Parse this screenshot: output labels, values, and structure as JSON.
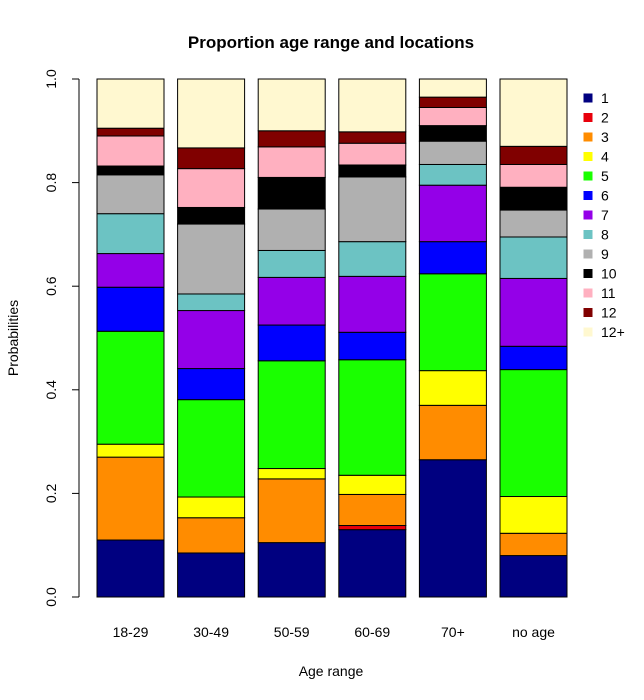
{
  "chart_data": {
    "type": "bar",
    "stacked": true,
    "title": "Proportion age range and locations",
    "xlabel": "Age range",
    "ylabel": "Probabilities",
    "ylim": [
      0,
      1
    ],
    "yticks": [
      "0.0",
      "0.2",
      "0.4",
      "0.6",
      "0.8",
      "1.0"
    ],
    "categories": [
      "18-29",
      "30-49",
      "50-59",
      "60-69",
      "70+",
      "no age"
    ],
    "legend_position": "right",
    "series": [
      {
        "name": "1",
        "color": "#000080",
        "values": [
          0.11,
          0.085,
          0.105,
          0.13,
          0.265,
          0.08
        ]
      },
      {
        "name": "2",
        "color": "#e8000b",
        "values": [
          0.0,
          0.0,
          0.0,
          0.008,
          0.0,
          0.0
        ]
      },
      {
        "name": "3",
        "color": "#ff8c00",
        "values": [
          0.16,
          0.068,
          0.123,
          0.06,
          0.105,
          0.043
        ]
      },
      {
        "name": "4",
        "color": "#ffff00",
        "values": [
          0.025,
          0.04,
          0.02,
          0.037,
          0.067,
          0.071
        ]
      },
      {
        "name": "5",
        "color": "#1aff00",
        "values": [
          0.218,
          0.188,
          0.208,
          0.223,
          0.187,
          0.245
        ]
      },
      {
        "name": "6",
        "color": "#0000ff",
        "values": [
          0.085,
          0.06,
          0.069,
          0.053,
          0.062,
          0.045
        ]
      },
      {
        "name": "7",
        "color": "#9400e8",
        "values": [
          0.065,
          0.112,
          0.092,
          0.108,
          0.109,
          0.131
        ]
      },
      {
        "name": "8",
        "color": "#6cc3c3",
        "values": [
          0.077,
          0.032,
          0.052,
          0.067,
          0.04,
          0.08
        ]
      },
      {
        "name": "9",
        "color": "#b0b0b0",
        "values": [
          0.075,
          0.135,
          0.08,
          0.125,
          0.045,
          0.052
        ]
      },
      {
        "name": "10",
        "color": "#000000",
        "values": [
          0.017,
          0.032,
          0.061,
          0.023,
          0.03,
          0.044
        ]
      },
      {
        "name": "11",
        "color": "#ffb0c0",
        "values": [
          0.058,
          0.075,
          0.059,
          0.042,
          0.035,
          0.044
        ]
      },
      {
        "name": "12",
        "color": "#800000",
        "values": [
          0.015,
          0.04,
          0.031,
          0.022,
          0.02,
          0.035
        ]
      },
      {
        "name": "12+",
        "color": "#fff8d0",
        "values": [
          0.095,
          0.133,
          0.1,
          0.102,
          0.035,
          0.13
        ]
      }
    ]
  }
}
